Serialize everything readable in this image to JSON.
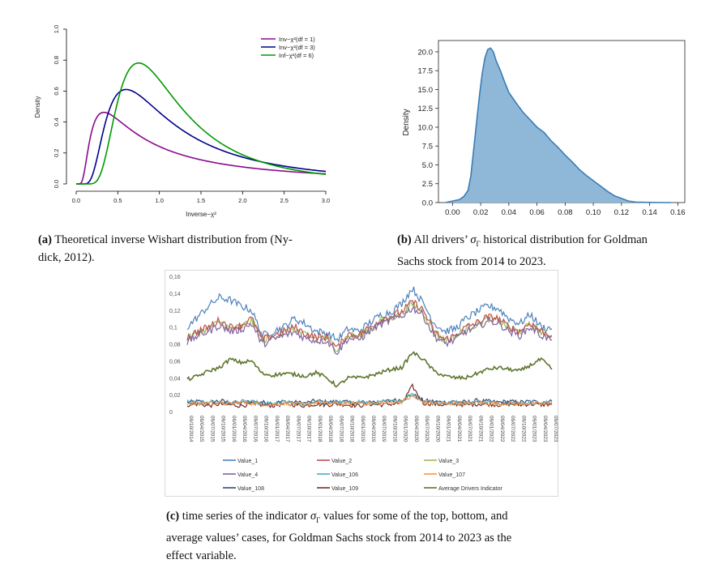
{
  "captions": {
    "a_label": "(a)",
    "a_text_1": "Theoretical inverse Wishart distribution from (Ny-",
    "a_text_2": "dick, 2012).",
    "b_label": "(b)",
    "b_text_1": "All drivers’",
    "b_sym": "σ",
    "b_sub": "Γ",
    "b_text_2": "historical distribution for Goldman",
    "b_text_3": "Sachs stock from 2014 to 2023.",
    "c_label": "(c)",
    "c_text_1": "time series of the indicator",
    "c_sym": "σ",
    "c_sub": "Γ",
    "c_text_2": "values for some of the top, bottom, and",
    "c_text_3": "average values’ cases, for Goldman Sachs stock from 2014 to 2023 as the",
    "c_text_4": "effect variable."
  },
  "chart_data": [
    {
      "id": "a",
      "type": "line",
      "title": "",
      "xlabel": "Inverse−χ²",
      "ylabel": "Density",
      "xlim": [
        0.0,
        3.0
      ],
      "ylim": [
        0.0,
        1.0
      ],
      "xticks": [
        "0.0",
        "0.5",
        "1.0",
        "1.5",
        "2.0",
        "2.5",
        "3.0"
      ],
      "yticks": [
        "0.0",
        "0.2",
        "0.4",
        "0.6",
        "0.8",
        "1.0"
      ],
      "legend_position": "top-right",
      "series": [
        {
          "name": "Inv−χ²(df = 1)",
          "color": "#8b0a8b",
          "df": 1,
          "peak_x": 0.33,
          "peak_y": 0.46
        },
        {
          "name": "Inv−χ²(df = 3)",
          "color": "#00008b",
          "df": 3,
          "peak_x": 0.6,
          "peak_y": 0.61
        },
        {
          "name": "Inf−χ²(df = 6)",
          "color": "#009900",
          "df": 6,
          "peak_x": 0.75,
          "peak_y": 0.78
        }
      ]
    },
    {
      "id": "b",
      "type": "area",
      "title": "",
      "xlabel": "",
      "ylabel": "Density",
      "xlim": [
        -0.01,
        0.165
      ],
      "ylim": [
        0.0,
        21.5
      ],
      "xticks": [
        "0.00",
        "0.02",
        "0.04",
        "0.06",
        "0.08",
        "0.10",
        "0.12",
        "0.14",
        "0.16"
      ],
      "yticks": [
        "0.0",
        "2.5",
        "5.0",
        "7.5",
        "10.0",
        "12.5",
        "15.0",
        "17.5",
        "20.0"
      ],
      "fill_color": "#8fb8d8",
      "line_color": "#3a7cb5",
      "x": [
        -0.005,
        0.0,
        0.005,
        0.008,
        0.011,
        0.013,
        0.015,
        0.017,
        0.019,
        0.021,
        0.023,
        0.025,
        0.027,
        0.029,
        0.031,
        0.034,
        0.037,
        0.04,
        0.043,
        0.046,
        0.05,
        0.055,
        0.06,
        0.065,
        0.07,
        0.075,
        0.08,
        0.085,
        0.09,
        0.095,
        0.1,
        0.105,
        0.11,
        0.115,
        0.12,
        0.125,
        0.13,
        0.14,
        0.15,
        0.155
      ],
      "y": [
        0.0,
        0.2,
        0.4,
        0.8,
        1.6,
        3.5,
        7.0,
        10.5,
        14.0,
        17.0,
        19.2,
        20.3,
        20.5,
        20.0,
        18.8,
        17.5,
        16.0,
        14.6,
        13.8,
        13.0,
        12.0,
        11.0,
        10.0,
        9.3,
        8.2,
        7.3,
        6.3,
        5.4,
        4.4,
        3.6,
        2.9,
        2.2,
        1.5,
        0.9,
        0.55,
        0.2,
        0.06,
        0.02,
        0.0,
        0.0
      ]
    },
    {
      "id": "c",
      "type": "line",
      "title": "",
      "xlabel": "",
      "ylabel": "",
      "ylim": [
        0,
        0.16
      ],
      "yticks": [
        "0",
        "0,02",
        "0,04",
        "0,06",
        "0,08",
        "0,1",
        "0,12",
        "0,14",
        "0,16"
      ],
      "xticks": [
        "09/10/2014",
        "09/04/2015",
        "09/07/2015",
        "09/10/2015",
        "09/01/2016",
        "09/04/2016",
        "09/07/2016",
        "09/10/2016",
        "09/01/2017",
        "09/04/2017",
        "09/07/2017",
        "09/10/2017",
        "09/01/2018",
        "09/04/2018",
        "09/07/2018",
        "09/10/2018",
        "09/01/2019",
        "09/04/2019",
        "09/07/2019",
        "09/10/2019",
        "09/01/2020",
        "09/04/2020",
        "09/07/2020",
        "09/10/2020",
        "09/01/2021",
        "09/04/2021",
        "09/07/2021",
        "09/10/2021",
        "09/01/2022",
        "09/04/2022",
        "09/07/2022",
        "09/10/2022",
        "09/01/2023",
        "09/04/2023",
        "09/07/2023"
      ],
      "series": [
        {
          "name": "Value_1",
          "color": "#4f81bd",
          "values": [
            0.1,
            0.112,
            0.125,
            0.135,
            0.132,
            0.125,
            0.12,
            0.09,
            0.095,
            0.1,
            0.11,
            0.104,
            0.095,
            0.093,
            0.085,
            0.098,
            0.095,
            0.105,
            0.114,
            0.118,
            0.128,
            0.146,
            0.128,
            0.105,
            0.095,
            0.098,
            0.11,
            0.118,
            0.125,
            0.122,
            0.11,
            0.104,
            0.115,
            0.1,
            0.098
          ]
        },
        {
          "name": "Value_2",
          "color": "#c0504d",
          "values": [
            0.088,
            0.095,
            0.1,
            0.108,
            0.1,
            0.102,
            0.11,
            0.085,
            0.09,
            0.095,
            0.1,
            0.092,
            0.088,
            0.088,
            0.075,
            0.092,
            0.09,
            0.1,
            0.108,
            0.113,
            0.118,
            0.13,
            0.12,
            0.095,
            0.085,
            0.09,
            0.1,
            0.105,
            0.112,
            0.11,
            0.1,
            0.095,
            0.105,
            0.095,
            0.09
          ]
        },
        {
          "name": "Value_3",
          "color": "#9bbb59",
          "values": [
            0.086,
            0.093,
            0.098,
            0.106,
            0.098,
            0.1,
            0.108,
            0.084,
            0.089,
            0.093,
            0.098,
            0.09,
            0.087,
            0.087,
            0.074,
            0.09,
            0.089,
            0.098,
            0.106,
            0.111,
            0.116,
            0.127,
            0.118,
            0.094,
            0.084,
            0.089,
            0.098,
            0.103,
            0.11,
            0.108,
            0.099,
            0.094,
            0.103,
            0.094,
            0.089
          ]
        },
        {
          "name": "Value_4",
          "color": "#8064a2",
          "values": [
            0.082,
            0.09,
            0.095,
            0.102,
            0.095,
            0.097,
            0.104,
            0.08,
            0.085,
            0.09,
            0.094,
            0.087,
            0.084,
            0.084,
            0.07,
            0.087,
            0.085,
            0.095,
            0.103,
            0.108,
            0.113,
            0.123,
            0.114,
            0.09,
            0.08,
            0.085,
            0.095,
            0.1,
            0.107,
            0.105,
            0.095,
            0.09,
            0.1,
            0.09,
            0.085
          ]
        },
        {
          "name": "Value_106",
          "color": "#4bacc6",
          "values": [
            0.012,
            0.01,
            0.012,
            0.011,
            0.01,
            0.012,
            0.011,
            0.01,
            0.009,
            0.011,
            0.01,
            0.009,
            0.012,
            0.01,
            0.011,
            0.01,
            0.012,
            0.01,
            0.011,
            0.012,
            0.013,
            0.022,
            0.012,
            0.011,
            0.01,
            0.011,
            0.01,
            0.012,
            0.011,
            0.01,
            0.011,
            0.01,
            0.011,
            0.01,
            0.011
          ]
        },
        {
          "name": "Value_107",
          "color": "#f79646",
          "values": [
            0.01,
            0.009,
            0.011,
            0.01,
            0.009,
            0.011,
            0.01,
            0.009,
            0.008,
            0.01,
            0.009,
            0.008,
            0.011,
            0.009,
            0.01,
            0.009,
            0.011,
            0.009,
            0.01,
            0.011,
            0.012,
            0.018,
            0.011,
            0.01,
            0.009,
            0.01,
            0.009,
            0.011,
            0.01,
            0.009,
            0.01,
            0.009,
            0.01,
            0.009,
            0.01
          ]
        },
        {
          "name": "Value_108",
          "color": "#2c4d75",
          "values": [
            0.011,
            0.012,
            0.01,
            0.013,
            0.011,
            0.01,
            0.012,
            0.011,
            0.01,
            0.012,
            0.011,
            0.01,
            0.013,
            0.011,
            0.012,
            0.011,
            0.01,
            0.012,
            0.011,
            0.013,
            0.014,
            0.02,
            0.013,
            0.012,
            0.011,
            0.012,
            0.011,
            0.013,
            0.012,
            0.011,
            0.012,
            0.011,
            0.012,
            0.011,
            0.012
          ]
        },
        {
          "name": "Value_109",
          "color": "#772c2a",
          "values": [
            0.008,
            0.009,
            0.007,
            0.009,
            0.008,
            0.007,
            0.009,
            0.008,
            0.007,
            0.009,
            0.008,
            0.007,
            0.009,
            0.008,
            0.009,
            0.008,
            0.007,
            0.009,
            0.008,
            0.009,
            0.01,
            0.03,
            0.01,
            0.009,
            0.008,
            0.009,
            0.008,
            0.009,
            0.009,
            0.008,
            0.009,
            0.008,
            0.009,
            0.008,
            0.009
          ]
        },
        {
          "name": "Average Drivers Indicator",
          "color": "#5f7530",
          "values": [
            0.038,
            0.042,
            0.048,
            0.052,
            0.062,
            0.058,
            0.06,
            0.045,
            0.043,
            0.045,
            0.044,
            0.042,
            0.046,
            0.04,
            0.03,
            0.04,
            0.04,
            0.042,
            0.046,
            0.05,
            0.052,
            0.07,
            0.062,
            0.048,
            0.042,
            0.04,
            0.04,
            0.045,
            0.05,
            0.052,
            0.05,
            0.048,
            0.055,
            0.062,
            0.05
          ]
        }
      ]
    }
  ]
}
